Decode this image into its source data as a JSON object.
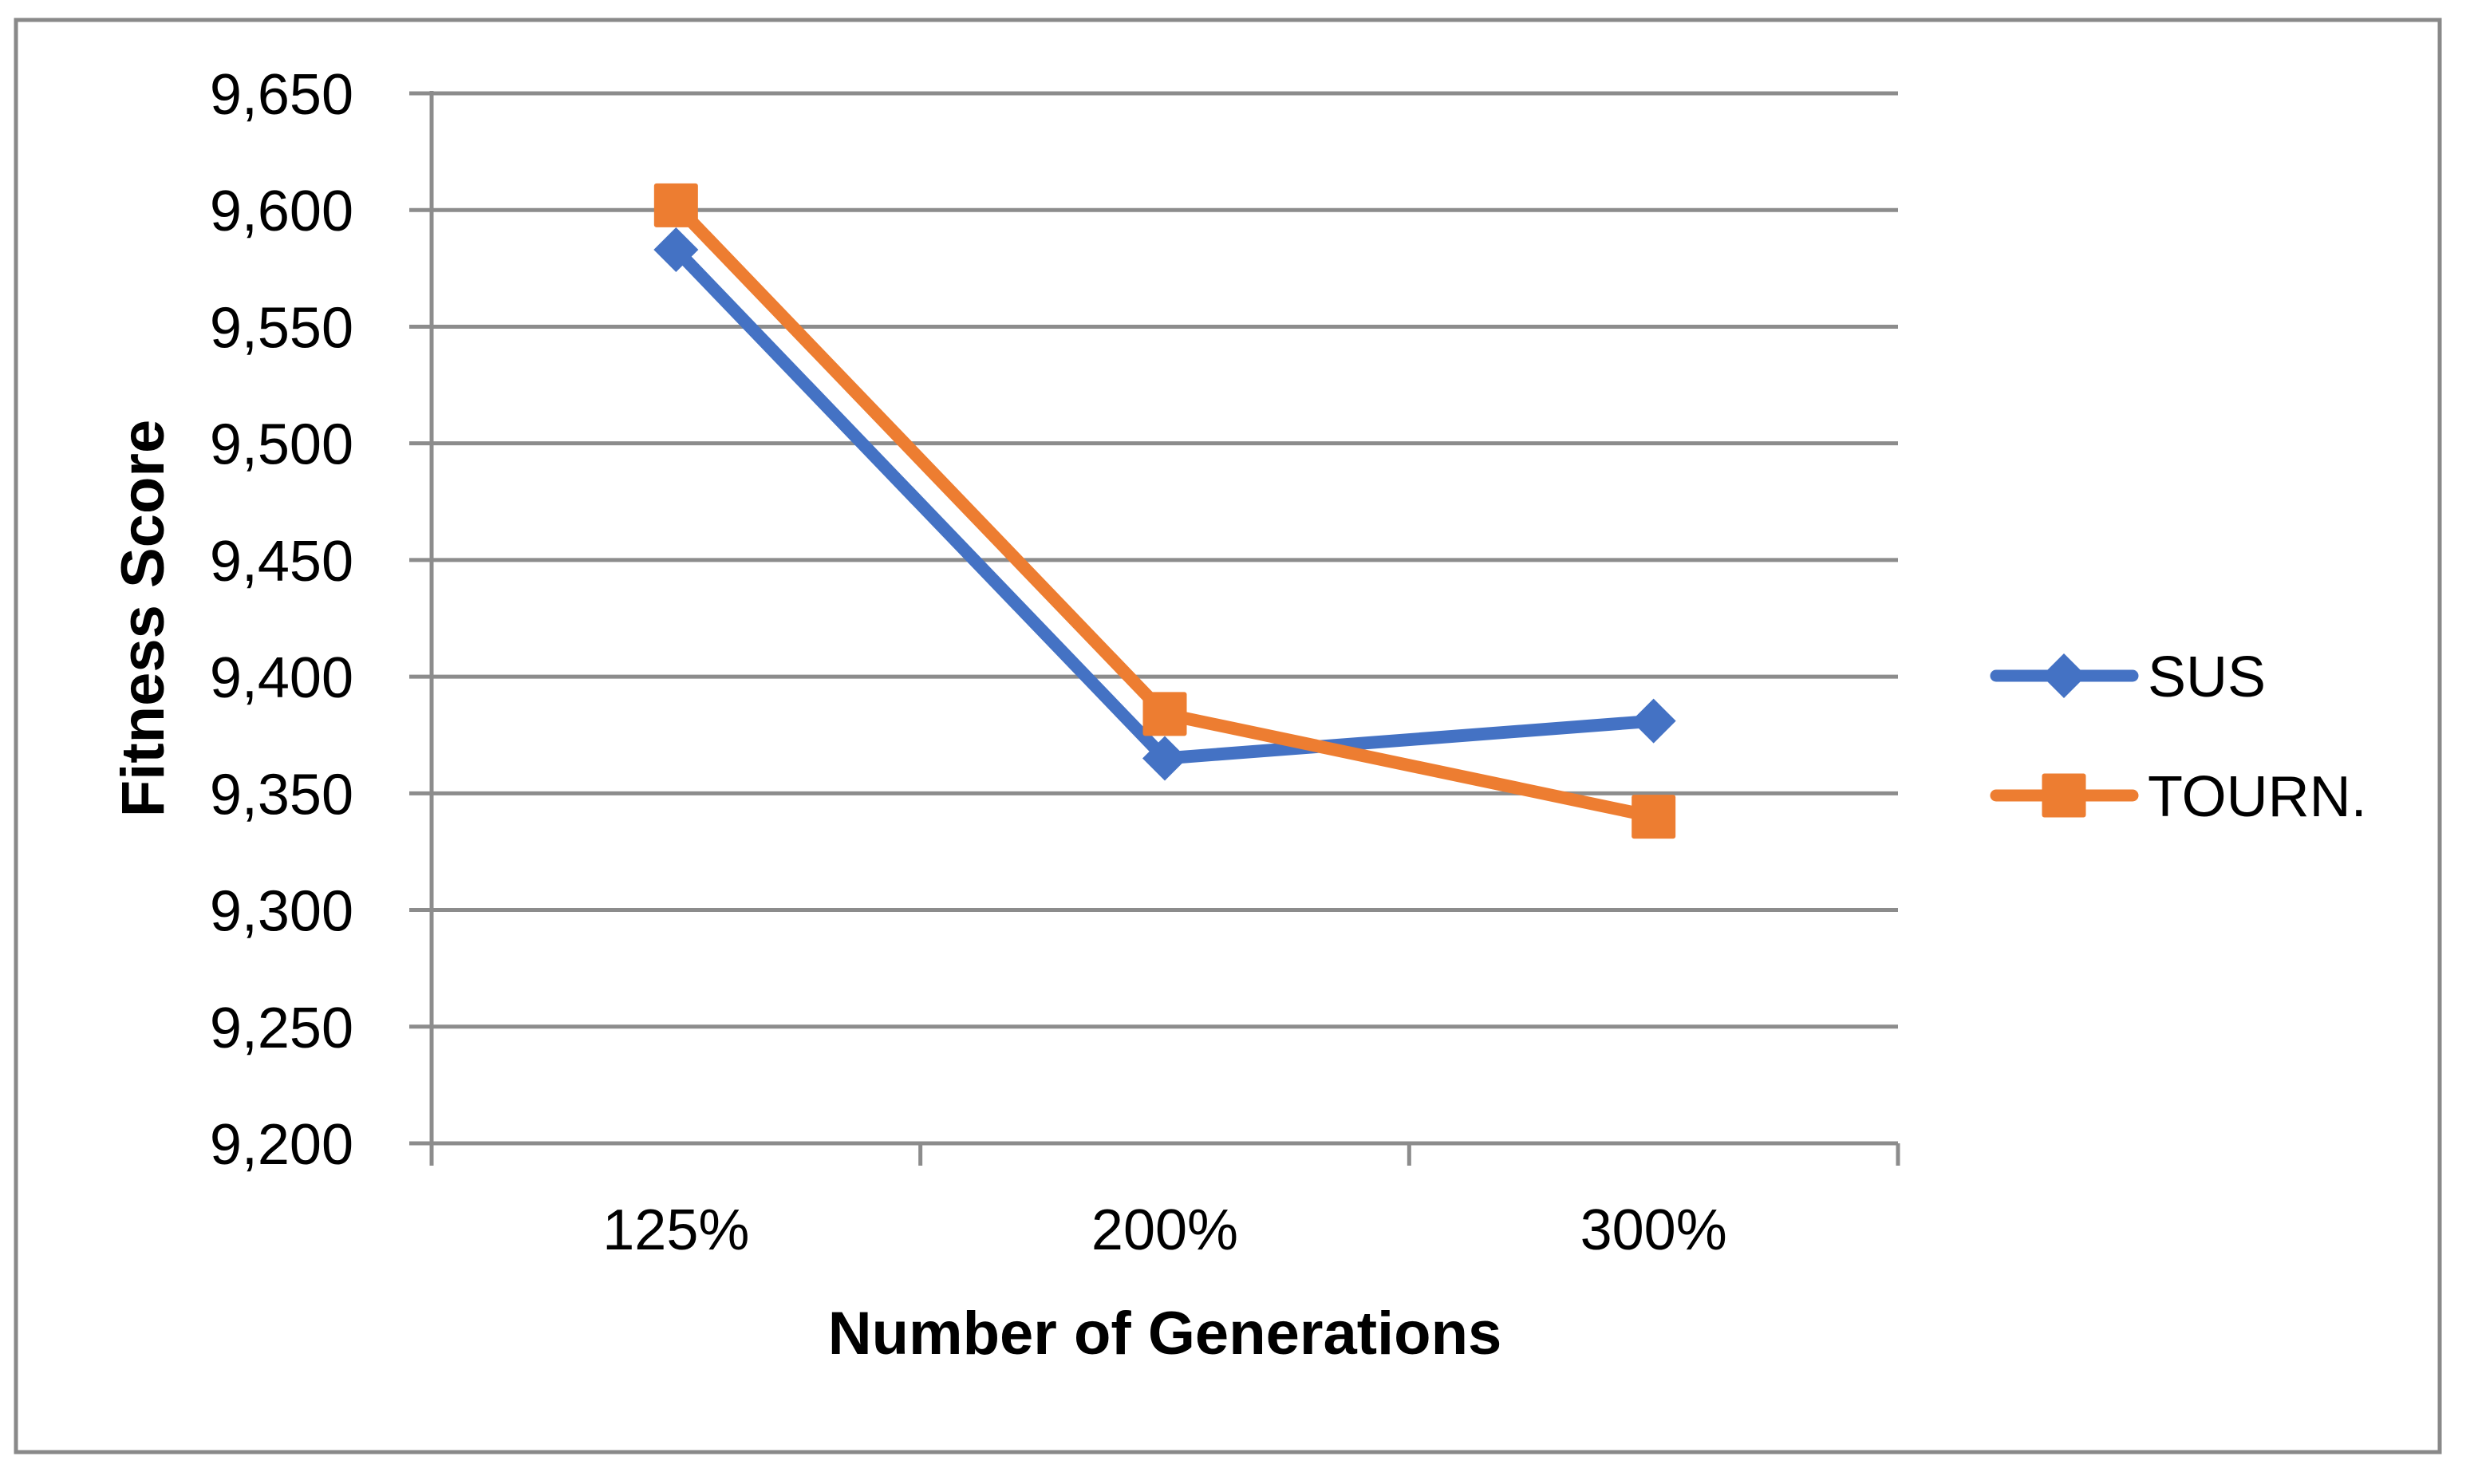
{
  "figure": {
    "background_color": "#ffffff",
    "border_color": "#898989"
  },
  "chart_data": {
    "type": "line",
    "title": "",
    "xlabel": "Number of Generations",
    "ylabel": "Fitness Score",
    "categories": [
      "125%",
      "200%",
      "300%"
    ],
    "series": [
      {
        "name": "SUS",
        "color": "#4472C4",
        "marker": "diamond",
        "values": [
          9583,
          9365,
          9381
        ]
      },
      {
        "name": "TOURN.",
        "color": "#ED7D31",
        "marker": "square",
        "values": [
          9602,
          9384,
          9340
        ]
      }
    ],
    "ylim": [
      9200,
      9650
    ],
    "yticks": [
      9200,
      9250,
      9300,
      9350,
      9400,
      9450,
      9500,
      9550,
      9600,
      9650
    ],
    "ytick_labels": [
      "9,200",
      "9,250",
      "9,300",
      "9,350",
      "9,400",
      "9,450",
      "9,500",
      "9,550",
      "9,600",
      "9,650"
    ],
    "grid": true,
    "gridline_color": "#8c8c8c",
    "axis_color": "#8c8c8c",
    "text_color": "#000000",
    "legend_position": "right"
  }
}
